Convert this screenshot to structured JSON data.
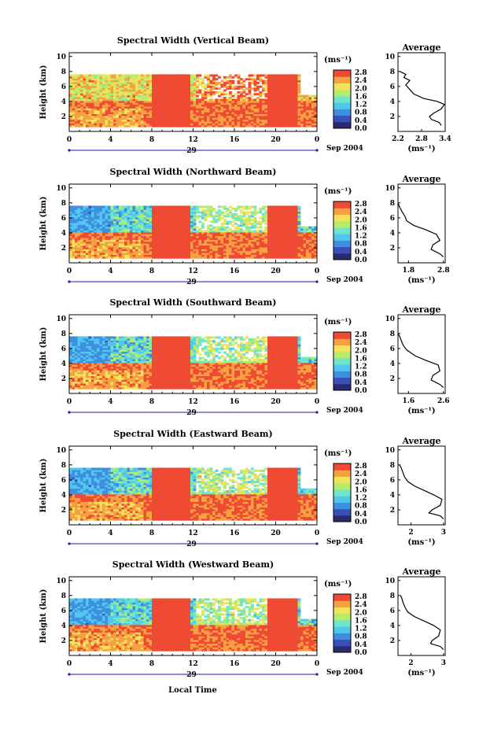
{
  "chart_data": [
    {
      "type": "heatmap",
      "title": "Spectral Width (Vertical Beam)",
      "ylabel": "Height (km)",
      "y_ticks": [
        "2",
        "4",
        "6",
        "8",
        "10"
      ],
      "x_ticks": [
        "0",
        "4",
        "8",
        "12",
        "16",
        "20",
        "0"
      ],
      "date_day": "29",
      "date_month_year": "Sep 2004",
      "colorbar": {
        "unit": "(ms⁻¹)",
        "ticks": [
          "0.0",
          "0.4",
          "0.8",
          "1.2",
          "1.6",
          "2.0",
          "2.4",
          "2.8"
        ]
      },
      "average": {
        "title": "Average",
        "xlabel": "(ms⁻¹)",
        "x_ticks": [
          "2.2",
          "2.8",
          "3.4"
        ],
        "xlim": [
          2.2,
          3.4
        ],
        "profile": [
          [
            3.3,
            0.8
          ],
          [
            3.25,
            1.2
          ],
          [
            3.05,
            1.6
          ],
          [
            3.0,
            2.0
          ],
          [
            3.1,
            2.4
          ],
          [
            3.3,
            3.0
          ],
          [
            3.38,
            3.6
          ],
          [
            3.2,
            4.0
          ],
          [
            2.85,
            4.4
          ],
          [
            2.6,
            5.0
          ],
          [
            2.5,
            5.6
          ],
          [
            2.4,
            6.2
          ],
          [
            2.5,
            6.8
          ],
          [
            2.35,
            7.2
          ],
          [
            2.4,
            7.6
          ],
          [
            2.25,
            8.0
          ]
        ]
      }
    },
    {
      "type": "heatmap",
      "title": "Spectral Width (Northward Beam)",
      "ylabel": "Height (km)",
      "y_ticks": [
        "2",
        "4",
        "6",
        "8",
        "10"
      ],
      "x_ticks": [
        "0",
        "4",
        "8",
        "12",
        "16",
        "20",
        "0"
      ],
      "date_day": "29",
      "date_month_year": "Sep 2004",
      "colorbar": {
        "unit": "(ms⁻¹)",
        "ticks": [
          "0.0",
          "0.4",
          "0.8",
          "1.2",
          "1.6",
          "2.0",
          "2.4",
          "2.8"
        ]
      },
      "average": {
        "title": "Average",
        "xlabel": "(ms⁻¹)",
        "x_ticks": [
          "1.8",
          "2.8"
        ],
        "xlim": [
          1.5,
          2.85
        ],
        "profile": [
          [
            2.8,
            0.8
          ],
          [
            2.7,
            1.2
          ],
          [
            2.45,
            1.8
          ],
          [
            2.5,
            2.4
          ],
          [
            2.7,
            3.0
          ],
          [
            2.6,
            3.8
          ],
          [
            2.3,
            4.4
          ],
          [
            1.95,
            5.0
          ],
          [
            1.75,
            5.6
          ],
          [
            1.7,
            6.2
          ],
          [
            1.62,
            6.8
          ],
          [
            1.55,
            7.4
          ],
          [
            1.5,
            8.0
          ]
        ]
      }
    },
    {
      "type": "heatmap",
      "title": "Spectral Width (Southward Beam)",
      "ylabel": "Height (km)",
      "y_ticks": [
        "2",
        "4",
        "6",
        "8",
        "10"
      ],
      "x_ticks": [
        "0",
        "4",
        "8",
        "12",
        "16",
        "20",
        "0"
      ],
      "date_day": "29",
      "date_month_year": "Sep 2004",
      "colorbar": {
        "unit": "(ms⁻¹)",
        "ticks": [
          "0.0",
          "0.4",
          "0.8",
          "1.2",
          "1.6",
          "2.0",
          "2.4",
          "2.8"
        ]
      },
      "average": {
        "title": "Average",
        "xlabel": "(ms⁻¹)",
        "x_ticks": [
          "1.6",
          "2.6"
        ],
        "xlim": [
          1.3,
          2.65
        ],
        "profile": [
          [
            2.6,
            0.8
          ],
          [
            2.5,
            1.2
          ],
          [
            2.25,
            1.8
          ],
          [
            2.3,
            2.4
          ],
          [
            2.5,
            3.0
          ],
          [
            2.45,
            3.8
          ],
          [
            2.1,
            4.4
          ],
          [
            1.8,
            5.0
          ],
          [
            1.55,
            5.8
          ],
          [
            1.45,
            6.4
          ],
          [
            1.4,
            7.0
          ],
          [
            1.35,
            7.6
          ],
          [
            1.3,
            8.0
          ]
        ]
      }
    },
    {
      "type": "heatmap",
      "title": "Spectral Width (Eastward Beam)",
      "ylabel": "Height (km)",
      "y_ticks": [
        "2",
        "4",
        "6",
        "8",
        "10"
      ],
      "x_ticks": [
        "0",
        "4",
        "8",
        "12",
        "16",
        "20",
        "0"
      ],
      "date_day": "29",
      "date_month_year": "Sep 2004",
      "colorbar": {
        "unit": "(ms⁻¹)",
        "ticks": [
          "0.0",
          "0.4",
          "0.8",
          "1.2",
          "1.6",
          "2.0",
          "2.4",
          "2.8"
        ]
      },
      "average": {
        "title": "Average",
        "xlabel": "(ms⁻¹)",
        "x_ticks": [
          "2",
          "3"
        ],
        "xlim": [
          1.6,
          3.05
        ],
        "profile": [
          [
            3.0,
            0.8
          ],
          [
            2.9,
            1.2
          ],
          [
            2.55,
            1.6
          ],
          [
            2.65,
            2.0
          ],
          [
            2.9,
            2.6
          ],
          [
            2.95,
            3.4
          ],
          [
            2.7,
            4.0
          ],
          [
            2.4,
            4.6
          ],
          [
            2.1,
            5.2
          ],
          [
            1.9,
            5.8
          ],
          [
            1.8,
            6.4
          ],
          [
            1.75,
            7.0
          ],
          [
            1.7,
            7.6
          ],
          [
            1.65,
            8.0
          ]
        ]
      }
    },
    {
      "type": "heatmap",
      "title": "Spectral Width (Westward Beam)",
      "ylabel": "Height (km)",
      "y_ticks": [
        "2",
        "4",
        "6",
        "8",
        "10"
      ],
      "x_ticks": [
        "0",
        "4",
        "8",
        "12",
        "16",
        "20",
        "0"
      ],
      "date_day": "29",
      "date_month_year": "Sep 2004",
      "colorbar": {
        "unit": "(ms⁻¹)",
        "ticks": [
          "0.0",
          "0.4",
          "0.8",
          "1.2",
          "1.6",
          "2.0",
          "2.4",
          "2.8"
        ]
      },
      "average": {
        "title": "Average",
        "xlabel": "(ms⁻¹)",
        "x_ticks": [
          "2",
          "3"
        ],
        "xlim": [
          1.6,
          3.05
        ],
        "profile": [
          [
            3.0,
            0.8
          ],
          [
            2.9,
            1.2
          ],
          [
            2.6,
            1.6
          ],
          [
            2.65,
            2.0
          ],
          [
            2.85,
            2.6
          ],
          [
            2.9,
            3.4
          ],
          [
            2.7,
            4.0
          ],
          [
            2.4,
            4.6
          ],
          [
            2.1,
            5.2
          ],
          [
            1.9,
            5.8
          ],
          [
            1.82,
            6.4
          ],
          [
            1.76,
            7.0
          ],
          [
            1.72,
            7.6
          ],
          [
            1.68,
            8.0
          ]
        ]
      }
    }
  ],
  "footer": {
    "xlabel": "Local Time"
  },
  "colors": {
    "jet": [
      "#2a2a6e",
      "#3b4fb8",
      "#3f8fe0",
      "#52c7ee",
      "#6fe6c8",
      "#b6ec6a",
      "#f2e35a",
      "#f5a142",
      "#ef4a34"
    ],
    "accent": "#1a1ab5"
  }
}
